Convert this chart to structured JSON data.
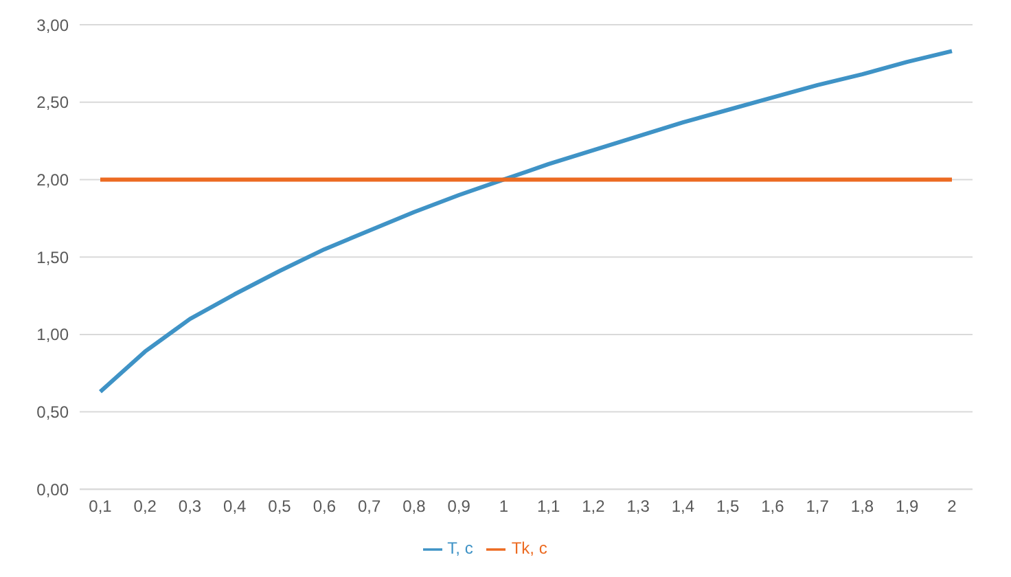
{
  "chart_data": {
    "type": "line",
    "categories": [
      "0,1",
      "0,2",
      "0,3",
      "0,4",
      "0,5",
      "0,6",
      "0,7",
      "0,8",
      "0,9",
      "1",
      "1,1",
      "1,2",
      "1,3",
      "1,4",
      "1,5",
      "1,6",
      "1,7",
      "1,8",
      "1,9",
      "2"
    ],
    "series": [
      {
        "name": "T, c",
        "color": "#3f93c6",
        "values": [
          0.63,
          0.89,
          1.1,
          1.26,
          1.41,
          1.55,
          1.67,
          1.79,
          1.9,
          2.0,
          2.1,
          2.19,
          2.28,
          2.37,
          2.45,
          2.53,
          2.61,
          2.68,
          2.76,
          2.83
        ]
      },
      {
        "name": "Tk, c",
        "color": "#ec6b22",
        "values": [
          2,
          2,
          2,
          2,
          2,
          2,
          2,
          2,
          2,
          2,
          2,
          2,
          2,
          2,
          2,
          2,
          2,
          2,
          2,
          2
        ]
      }
    ],
    "ylim": [
      0,
      3
    ],
    "yticks": [
      {
        "value": 0,
        "label": "0,00"
      },
      {
        "value": 0.5,
        "label": "0,50"
      },
      {
        "value": 1,
        "label": "1,00"
      },
      {
        "value": 1.5,
        "label": "1,50"
      },
      {
        "value": 2,
        "label": "2,00"
      },
      {
        "value": 2.5,
        "label": "2,50"
      },
      {
        "value": 3,
        "label": "3,00"
      }
    ],
    "grid": "y",
    "legend": "bottom",
    "marker": "none",
    "line_style": "solid"
  }
}
